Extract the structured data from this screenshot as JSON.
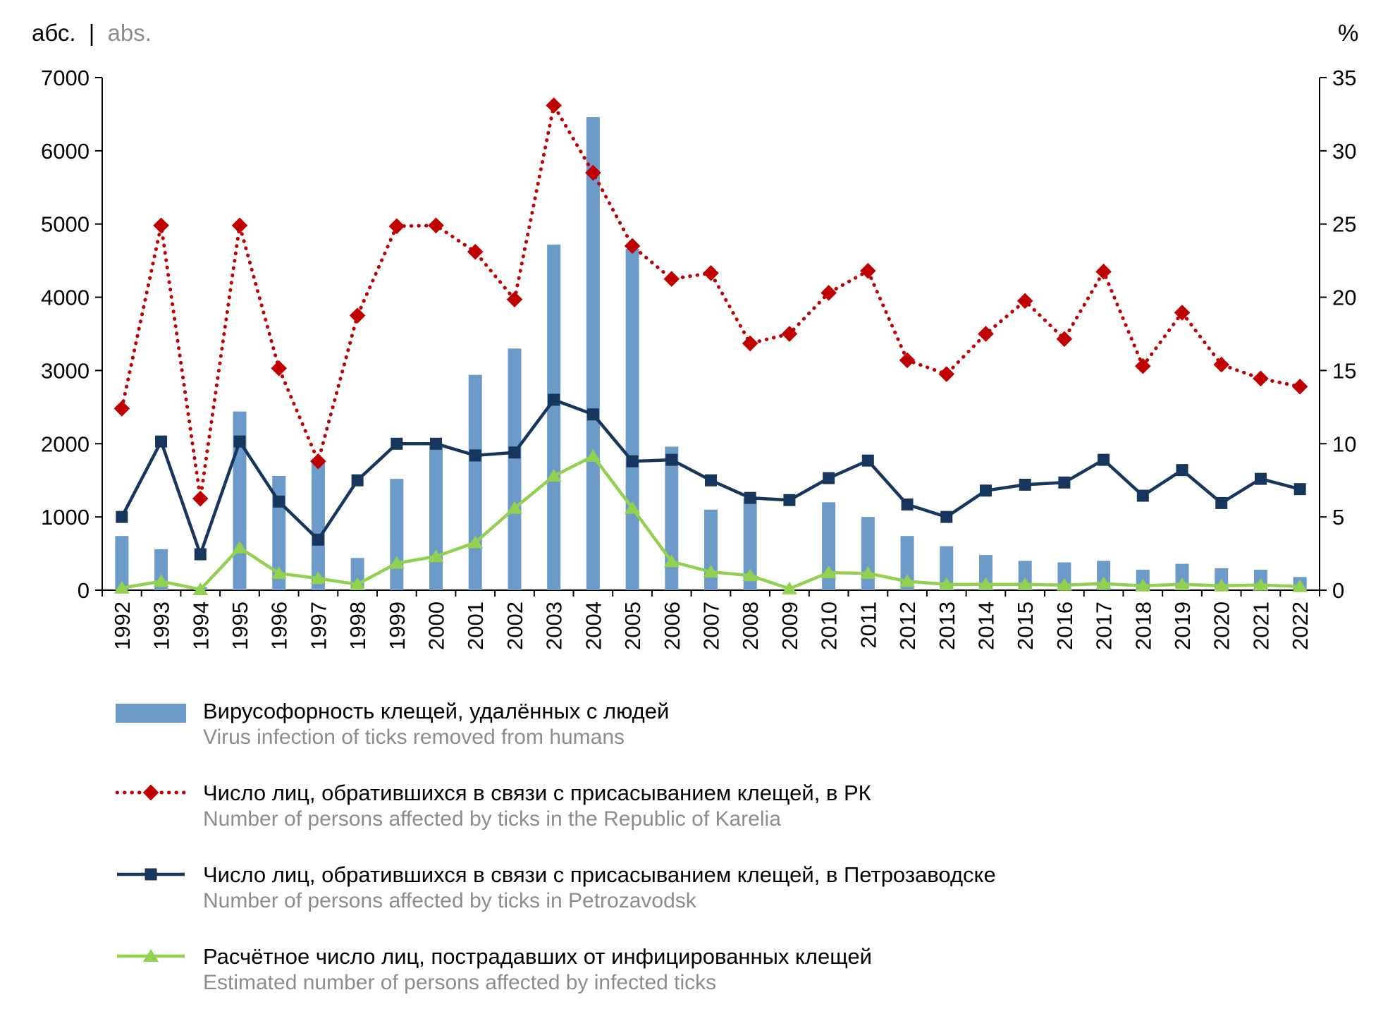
{
  "header": {
    "abs_ru": "абс.",
    "separator": "|",
    "abs_en": "abs.",
    "percent": "%"
  },
  "chart_data": {
    "type": "bar",
    "subtype": "combo-bar-line",
    "title": "",
    "categories": [
      1992,
      1993,
      1994,
      1995,
      1996,
      1997,
      1998,
      1999,
      2000,
      2001,
      2002,
      2003,
      2004,
      2005,
      2006,
      2007,
      2008,
      2009,
      2010,
      2011,
      2012,
      2013,
      2014,
      2015,
      2016,
      2017,
      2018,
      2019,
      2020,
      2021,
      2022
    ],
    "left_axis": {
      "title": "абс. | abs.",
      "min": 0,
      "max": 7000,
      "ticks": [
        0,
        1000,
        2000,
        3000,
        4000,
        5000,
        6000,
        7000
      ]
    },
    "right_axis": {
      "title": "%",
      "min": 0,
      "max": 35,
      "ticks": [
        0,
        5,
        10,
        15,
        20,
        25,
        30,
        35
      ]
    },
    "grid": "off",
    "legend_position": "bottom",
    "series": [
      {
        "name": "Вирусофорность клещей, удалённых с людей",
        "name_en": "Virus infection of ticks removed from humans",
        "type": "bar",
        "axis": "right",
        "color": "#6d9bc9",
        "values": [
          3.7,
          2.8,
          0.2,
          12.2,
          7.8,
          8.9,
          2.2,
          7.6,
          9.9,
          14.7,
          16.5,
          23.6,
          32.3,
          23.3,
          9.8,
          5.5,
          6.3,
          0,
          6.0,
          5.0,
          3.7,
          3.0,
          2.4,
          2.0,
          1.9,
          2.0,
          1.4,
          1.8,
          1.5,
          1.4,
          0.9
        ]
      },
      {
        "name": "Число лиц, обратившихся в связи с присасыванием клещей, в РК",
        "name_en": "Number of persons affected by ticks in the Republic of Karelia",
        "type": "line",
        "style": "dotted",
        "marker": "diamond",
        "axis": "left",
        "color": "#c00000",
        "values": [
          2480,
          4980,
          1250,
          4980,
          3030,
          1760,
          3750,
          4970,
          4980,
          4620,
          3970,
          6620,
          5700,
          4700,
          4250,
          4330,
          3370,
          3500,
          4060,
          4360,
          3140,
          2950,
          3500,
          3950,
          3430,
          4350,
          3060,
          3790,
          3080,
          2890,
          2780
        ]
      },
      {
        "name": "Число лиц, обратившихся в связи с присасыванием клещей, в Петрозаводске",
        "name_en": "Number of persons affected by ticks in Petrozavodsk",
        "type": "line",
        "style": "solid",
        "marker": "square",
        "axis": "left",
        "color": "#17365d",
        "values": [
          1000,
          2030,
          490,
          2030,
          1210,
          690,
          1500,
          2000,
          2000,
          1840,
          1880,
          2600,
          2400,
          1760,
          1780,
          1500,
          1260,
          1230,
          1530,
          1770,
          1170,
          1000,
          1360,
          1440,
          1470,
          1780,
          1290,
          1640,
          1190,
          1520,
          1380
        ]
      },
      {
        "name": "Расчётное число лиц, пострадавших от инфицированных клещей",
        "name_en": "Estimated number of persons affected by infected ticks",
        "type": "line",
        "style": "solid",
        "marker": "triangle",
        "axis": "left",
        "color": "#92d050",
        "values": [
          30,
          120,
          10,
          580,
          230,
          160,
          80,
          370,
          460,
          650,
          1120,
          1560,
          1830,
          1120,
          390,
          250,
          200,
          20,
          240,
          230,
          120,
          80,
          80,
          80,
          70,
          90,
          60,
          80,
          60,
          70,
          50
        ]
      }
    ]
  }
}
